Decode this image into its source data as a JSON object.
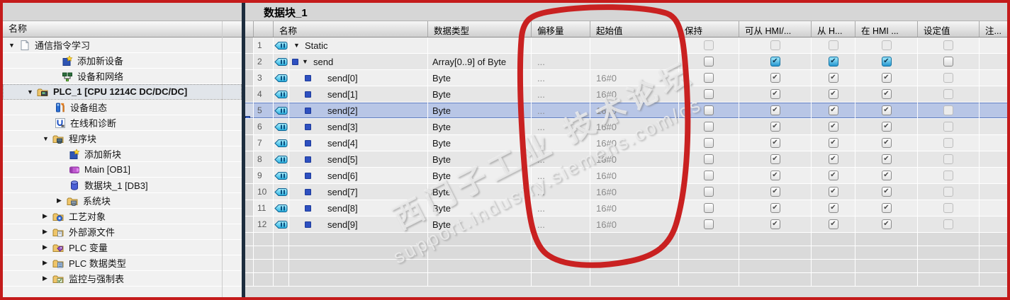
{
  "annotation": {
    "frame_color": "#c41b1b",
    "circle_color": "#c92121",
    "circled_columns": [
      "偏移量",
      "起始值"
    ]
  },
  "watermark": {
    "line1": "西门子工业 技术论坛",
    "line2": "support.industry.siemens.com/cs"
  },
  "sidebar": {
    "header": "名称",
    "items": [
      {
        "label": "通信指令学习",
        "icon": "project-icon",
        "level": 0,
        "expander": "open",
        "selected": false,
        "bold": false
      },
      {
        "label": "添加新设备",
        "icon": "add-device-icon",
        "level": 1,
        "expander": null,
        "selected": false,
        "bold": false
      },
      {
        "label": "设备和网络",
        "icon": "network-icon",
        "level": 1,
        "expander": null,
        "selected": false,
        "bold": false
      },
      {
        "label": "PLC_1 [CPU 1214C DC/DC/DC]",
        "icon": "plc-folder-icon",
        "level": 1,
        "expander": "open",
        "selected": true,
        "bold": true
      },
      {
        "label": "设备组态",
        "icon": "device-config-icon",
        "level": 2,
        "expander": null,
        "selected": false,
        "bold": false
      },
      {
        "label": "在线和诊断",
        "icon": "online-diagnostics-icon",
        "level": 2,
        "expander": null,
        "selected": false,
        "bold": false
      },
      {
        "label": "程序块",
        "icon": "program-blocks-folder-icon",
        "level": 2,
        "expander": "open",
        "selected": false,
        "bold": false
      },
      {
        "label": "添加新块",
        "icon": "add-block-icon",
        "level": 3,
        "expander": null,
        "selected": false,
        "bold": false
      },
      {
        "label": "Main [OB1]",
        "icon": "ob-block-icon",
        "level": 3,
        "expander": null,
        "selected": false,
        "bold": false
      },
      {
        "label": "数据块_1 [DB3]",
        "icon": "db-block-icon",
        "level": 3,
        "expander": null,
        "selected": false,
        "bold": false
      },
      {
        "label": "系统块",
        "icon": "system-blocks-folder-icon",
        "level": 3,
        "expander": "closed",
        "selected": false,
        "bold": false
      },
      {
        "label": "工艺对象",
        "icon": "tech-objects-folder-icon",
        "level": 2,
        "expander": "closed",
        "selected": false,
        "bold": false
      },
      {
        "label": "外部源文件",
        "icon": "external-sources-folder-icon",
        "level": 2,
        "expander": "closed",
        "selected": false,
        "bold": false
      },
      {
        "label": "PLC 变量",
        "icon": "plc-tags-folder-icon",
        "level": 2,
        "expander": "closed",
        "selected": false,
        "bold": false
      },
      {
        "label": "PLC 数据类型",
        "icon": "plc-datatypes-folder-icon",
        "level": 2,
        "expander": "closed",
        "selected": false,
        "bold": false
      },
      {
        "label": "监控与强制表",
        "icon": "watch-tables-folder-icon",
        "level": 2,
        "expander": "closed",
        "selected": false,
        "bold": false
      }
    ]
  },
  "main": {
    "title": "数据块_1",
    "table": {
      "columns": [
        "名称",
        "数据类型",
        "偏移量",
        "起始值",
        "保持",
        "可从 HMI/...",
        "从 H...",
        "在 HMI ...",
        "设定值",
        "注..."
      ],
      "rows": [
        {
          "num": "1",
          "indent": 0,
          "expander": "open",
          "member": false,
          "name": "Static",
          "type": "",
          "offset": "",
          "start": "",
          "checks": [
            "disabled",
            "disabled",
            "disabled",
            "disabled",
            "disabled"
          ],
          "selected": false
        },
        {
          "num": "2",
          "indent": 1,
          "expander": "open",
          "member": true,
          "name": "send",
          "type": "Array[0..9] of Byte",
          "offset": "...",
          "start": "",
          "checks": [
            "unchecked",
            "checked",
            "checked",
            "checked",
            "unchecked"
          ],
          "selected": false
        },
        {
          "num": "3",
          "indent": 2,
          "expander": null,
          "member": true,
          "name": "send[0]",
          "type": "Byte",
          "offset": "...",
          "start": "16#0",
          "checks": [
            "unchecked",
            "checked-dim",
            "checked-dim",
            "checked-dim",
            "disabled"
          ],
          "selected": false
        },
        {
          "num": "4",
          "indent": 2,
          "expander": null,
          "member": true,
          "name": "send[1]",
          "type": "Byte",
          "offset": "...",
          "start": "16#0",
          "checks": [
            "unchecked",
            "checked-dim",
            "checked-dim",
            "checked-dim",
            "disabled"
          ],
          "selected": false
        },
        {
          "num": "5",
          "indent": 2,
          "expander": null,
          "member": true,
          "name": "send[2]",
          "type": "Byte",
          "offset": "...",
          "start": "16#0",
          "checks": [
            "unchecked",
            "checked-dim",
            "checked-dim",
            "checked-dim",
            "disabled"
          ],
          "selected": true
        },
        {
          "num": "6",
          "indent": 2,
          "expander": null,
          "member": true,
          "name": "send[3]",
          "type": "Byte",
          "offset": "...",
          "start": "16#0",
          "checks": [
            "unchecked",
            "checked-dim",
            "checked-dim",
            "checked-dim",
            "disabled"
          ],
          "selected": false
        },
        {
          "num": "7",
          "indent": 2,
          "expander": null,
          "member": true,
          "name": "send[4]",
          "type": "Byte",
          "offset": "...",
          "start": "16#0",
          "checks": [
            "unchecked",
            "checked-dim",
            "checked-dim",
            "checked-dim",
            "disabled"
          ],
          "selected": false
        },
        {
          "num": "8",
          "indent": 2,
          "expander": null,
          "member": true,
          "name": "send[5]",
          "type": "Byte",
          "offset": "...",
          "start": "16#0",
          "checks": [
            "unchecked",
            "checked-dim",
            "checked-dim",
            "checked-dim",
            "disabled"
          ],
          "selected": false
        },
        {
          "num": "9",
          "indent": 2,
          "expander": null,
          "member": true,
          "name": "send[6]",
          "type": "Byte",
          "offset": "...",
          "start": "16#0",
          "checks": [
            "unchecked",
            "checked-dim",
            "checked-dim",
            "checked-dim",
            "disabled"
          ],
          "selected": false
        },
        {
          "num": "10",
          "indent": 2,
          "expander": null,
          "member": true,
          "name": "send[7]",
          "type": "Byte",
          "offset": "...",
          "start": "16#0",
          "checks": [
            "unchecked",
            "checked-dim",
            "checked-dim",
            "checked-dim",
            "disabled"
          ],
          "selected": false
        },
        {
          "num": "11",
          "indent": 2,
          "expander": null,
          "member": true,
          "name": "send[8]",
          "type": "Byte",
          "offset": "...",
          "start": "16#0",
          "checks": [
            "unchecked",
            "checked-dim",
            "checked-dim",
            "checked-dim",
            "disabled"
          ],
          "selected": false
        },
        {
          "num": "12",
          "indent": 2,
          "expander": null,
          "member": true,
          "name": "send[9]",
          "type": "Byte",
          "offset": "...",
          "start": "16#0",
          "checks": [
            "unchecked",
            "checked-dim",
            "checked-dim",
            "checked-dim",
            "disabled"
          ],
          "selected": false
        }
      ],
      "empty_row_count": 4
    }
  }
}
